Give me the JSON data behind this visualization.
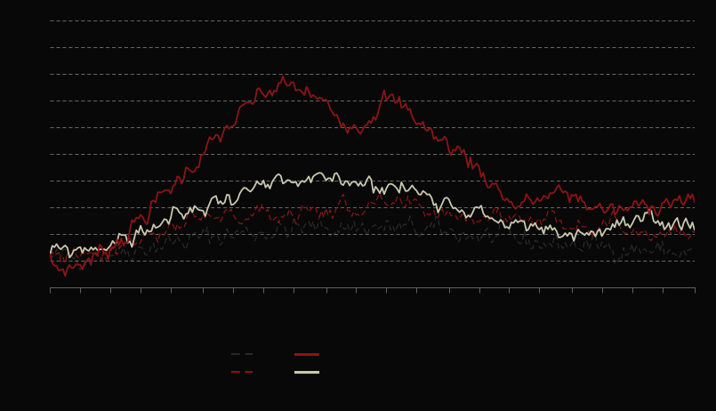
{
  "background_color": "#080808",
  "plot_bg_color": "#080808",
  "grid_color": "#ffffff",
  "n_points": 300,
  "ylim": [
    -0.05,
    0.35
  ],
  "line_dark_dashed_color": "#2a2a2a",
  "line_red_dashed_color": "#8b1515",
  "line_red_solid_color": "#8b1515",
  "line_gray_solid_color": "#c8c8b0",
  "n_gridlines": 11,
  "n_xticks": 22,
  "legend_ncol": 2,
  "legend_handlelength": 2.2,
  "legend_columnspacing": 4.0,
  "legend_labelspacing": 0.9
}
